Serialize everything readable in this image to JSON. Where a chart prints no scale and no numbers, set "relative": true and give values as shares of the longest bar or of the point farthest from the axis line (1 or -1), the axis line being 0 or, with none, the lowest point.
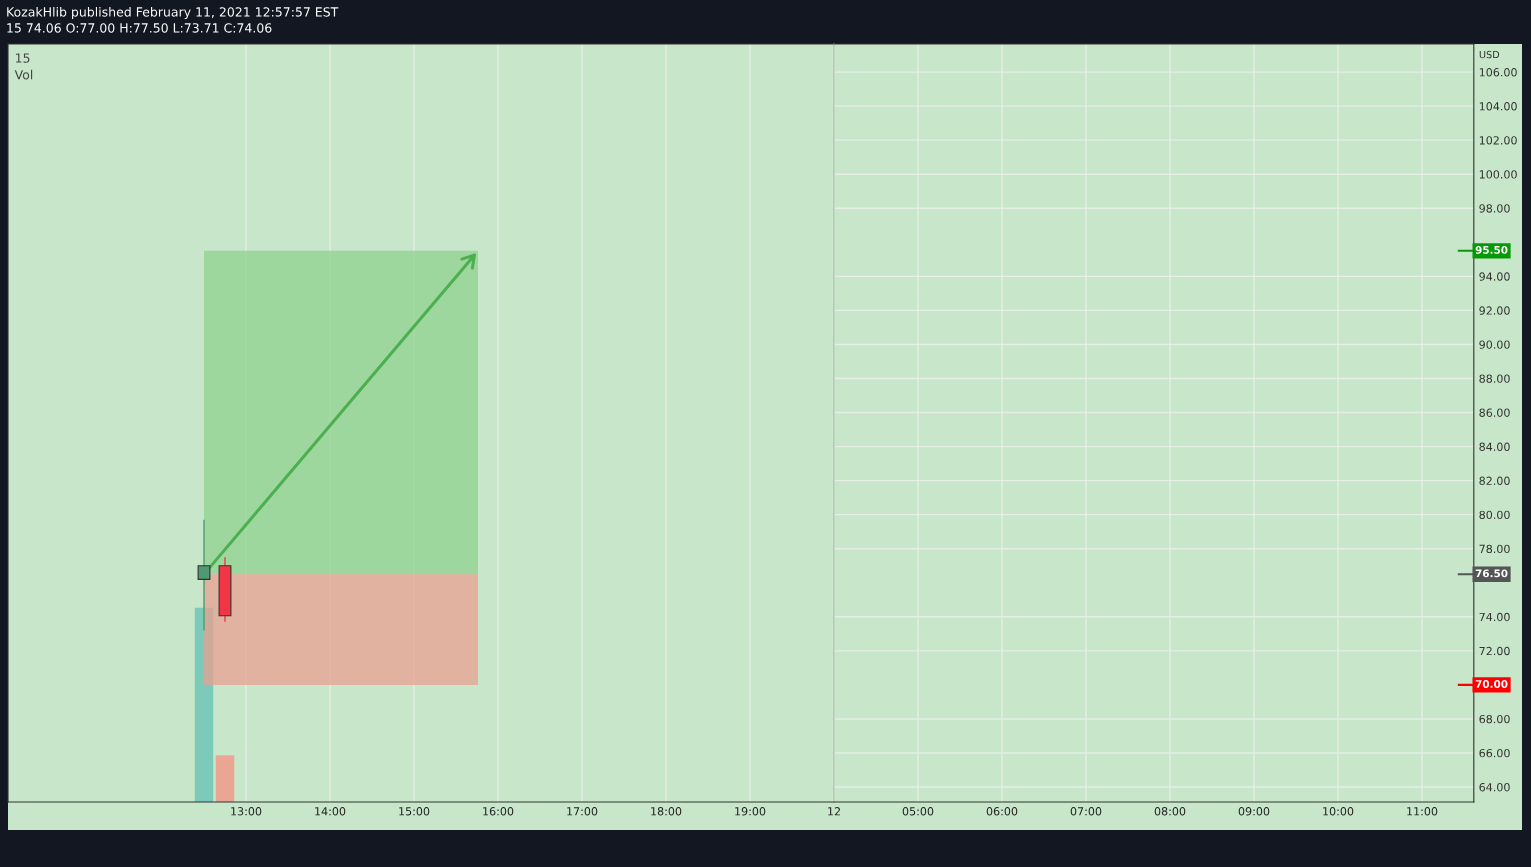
{
  "chart_data": [
    {
      "type": "candlestick",
      "title": "KozakHlib published February 11, 2021 12:57:57 EST",
      "subtitle": "15 74.06 O:77.00 H:77.50 L:73.71 C:74.06",
      "annotations": [
        "15"
      ],
      "x": [
        "2021-02-11T12:30",
        "2021-02-11T12:45"
      ],
      "ohlc": [
        [
          76.2,
          79.7,
          73.2,
          77.0
        ],
        [
          77.0,
          77.5,
          73.71,
          74.06
        ]
      ],
      "colors": [
        "#4f9a72",
        "#f23645"
      ],
      "xlim": [
        "2021-02-11T10:10",
        "2021-02-11T20:00"
      ],
      "xticks": [
        {
          "value": "2021-02-11T13:00",
          "label": "13:00"
        },
        {
          "value": "2021-02-11T14:00",
          "label": "14:00"
        },
        {
          "value": "2021-02-11T15:00",
          "label": "15:00"
        },
        {
          "value": "2021-02-11T16:00",
          "label": "16:00"
        },
        {
          "value": "2021-02-11T17:00",
          "label": "17:00"
        },
        {
          "value": "2021-02-11T18:00",
          "label": "18:00"
        },
        {
          "value": "2021-02-11T19:00",
          "label": "19:00"
        }
      ],
      "ylim": [
        63.12,
        107.65
      ],
      "tick_labels": "x",
      "bands": [
        {
          "axis": "y",
          "from": 76.5,
          "to": 95.5,
          "color": "#8fd18f"
        },
        {
          "axis": "y",
          "from": 70,
          "to": 76.5,
          "color": "#e8a090"
        }
      ],
      "grid": true
    },
    {
      "type": "bar",
      "title": "Vol",
      "relative": true,
      "tick_labels": false,
      "x": [
        "2021-02-11T12:30",
        "2021-02-11T12:45"
      ],
      "values": [
        1,
        0.24
      ],
      "colors": [
        "#7ccab9",
        "#eba594"
      ],
      "xlim": [
        "2021-02-11T10:10",
        "2021-02-11T20:00"
      ]
    },
    {
      "type": "candlestick",
      "ylabel": "USD",
      "ref_lines": [
        {
          "axis": "y",
          "value": 95.5,
          "label": "95.50",
          "color": "#089908"
        },
        {
          "axis": "y",
          "value": 76.5,
          "label": "76.50",
          "color": "#555555"
        },
        {
          "axis": "y",
          "value": 70,
          "label": "70.00",
          "color": "#ff0000"
        }
      ],
      "xlim": [
        "2021-02-12T04:00",
        "2021-02-12T11:37"
      ],
      "xticks": [
        {
          "value": "2021-02-12T04:00",
          "label": "12"
        },
        {
          "value": "2021-02-12T05:00",
          "label": "05:00"
        },
        {
          "value": "2021-02-12T06:00",
          "label": "06:00"
        },
        {
          "value": "2021-02-12T07:00",
          "label": "07:00"
        },
        {
          "value": "2021-02-12T08:00",
          "label": "08:00"
        },
        {
          "value": "2021-02-12T09:00",
          "label": "09:00"
        },
        {
          "value": "2021-02-12T10:00",
          "label": "10:00"
        },
        {
          "value": "2021-02-12T11:00",
          "label": "11:00"
        }
      ],
      "ylim": [
        63.12,
        107.65
      ],
      "yticks": [
        {
          "value": 64,
          "label": "64.00"
        },
        {
          "value": 66,
          "label": "66.00"
        },
        {
          "value": 68,
          "label": "68.00"
        },
        {
          "value": 72,
          "label": "72.00"
        },
        {
          "value": 74,
          "label": "74.00"
        },
        {
          "value": 78,
          "label": "78.00"
        },
        {
          "value": 80,
          "label": "80.00"
        },
        {
          "value": 82,
          "label": "82.00"
        },
        {
          "value": 84,
          "label": "84.00"
        },
        {
          "value": 86,
          "label": "86.00"
        },
        {
          "value": 88,
          "label": "88.00"
        },
        {
          "value": 90,
          "label": "90.00"
        },
        {
          "value": 92,
          "label": "92.00"
        },
        {
          "value": 94,
          "label": "94.00"
        },
        {
          "value": 98,
          "label": "98.00"
        },
        {
          "value": 100,
          "label": "100.00"
        },
        {
          "value": 102,
          "label": "102.00"
        },
        {
          "value": 104,
          "label": "104.00"
        },
        {
          "value": 106,
          "label": "106.00"
        }
      ],
      "grid": true
    }
  ]
}
